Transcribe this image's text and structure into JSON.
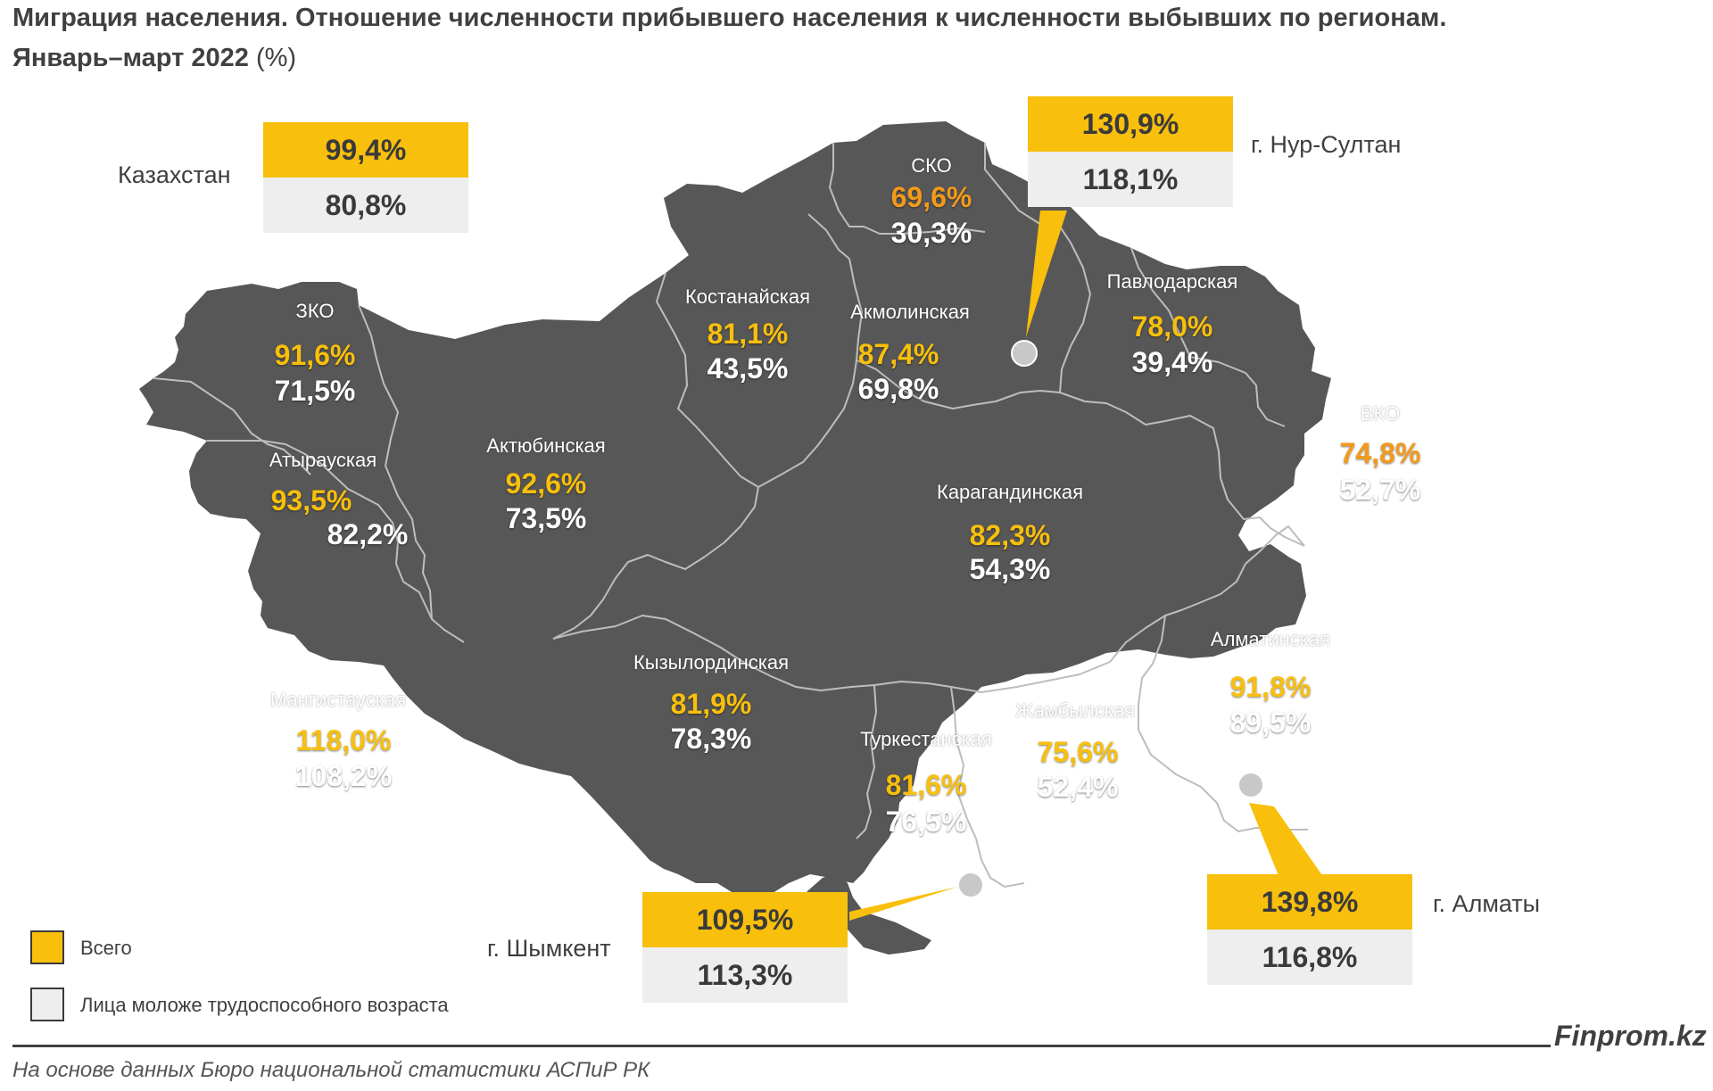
{
  "title": {
    "line1": "Миграция населения. Отношение численности прибывшего населения к численности выбывших по регионам.",
    "line2": "Январь–март 2022",
    "unit": "(%)"
  },
  "colors": {
    "map_fill": "#575757",
    "border": "#bdbdbd",
    "total": "#f8bf0c",
    "young": "#ffffff",
    "box_total": "#f8bf0c",
    "box_young": "#eeeeee"
  },
  "kazakhstan": {
    "name": "Казахстан",
    "total": "99,4%",
    "young": "80,8%"
  },
  "cities": {
    "nursultan": {
      "name": "г. Нур-Султан",
      "total": "130,9%",
      "young": "118,1%"
    },
    "almaty": {
      "name": "г. Алматы",
      "total": "139,8%",
      "young": "116,8%"
    },
    "shymkent": {
      "name": "г. Шымкент",
      "total": "109,5%",
      "young": "113,3%"
    }
  },
  "regions": {
    "zko": {
      "name": "ЗКО",
      "total": "91,6%",
      "young": "71,5%"
    },
    "atyrau": {
      "name": "Атырауская",
      "total": "93,5%",
      "young": "82,2%"
    },
    "aktobe": {
      "name": "Актюбинская",
      "total": "92,6%",
      "young": "73,5%"
    },
    "kostanay": {
      "name": "Костанайская",
      "total": "81,1%",
      "young": "43,5%"
    },
    "sko": {
      "name": "СКО",
      "total": "69,6%",
      "young": "30,3%"
    },
    "akmola": {
      "name": "Акмолинская",
      "total": "87,4%",
      "young": "69,8%"
    },
    "pavlodar": {
      "name": "Павлодарская",
      "total": "78,0%",
      "young": "39,4%"
    },
    "vko": {
      "name": "ВКО",
      "total": "74,8%",
      "young": "52,7%"
    },
    "karaganda": {
      "name": "Карагандинская",
      "total": "82,3%",
      "young": "54,3%"
    },
    "kyzylorda": {
      "name": "Кызылординская",
      "total": "81,9%",
      "young": "78,3%"
    },
    "mangystau": {
      "name": "Мангистауская",
      "total": "118,0%",
      "young": "108,2%"
    },
    "turkestan": {
      "name": "Туркестанская",
      "total": "81,6%",
      "young": "76,5%"
    },
    "zhambyl": {
      "name": "Жамбылская",
      "total": "75,6%",
      "young": "52,4%"
    },
    "almatyobl": {
      "name": "Алматинская",
      "total": "91,8%",
      "young": "89,5%"
    }
  },
  "legend": {
    "total": "Всего",
    "young": "Лица моложе трудоспособного возраста"
  },
  "brand": "Finprom.kz",
  "source": "На основе данных Бюро национальной статистики АСПиР РК"
}
